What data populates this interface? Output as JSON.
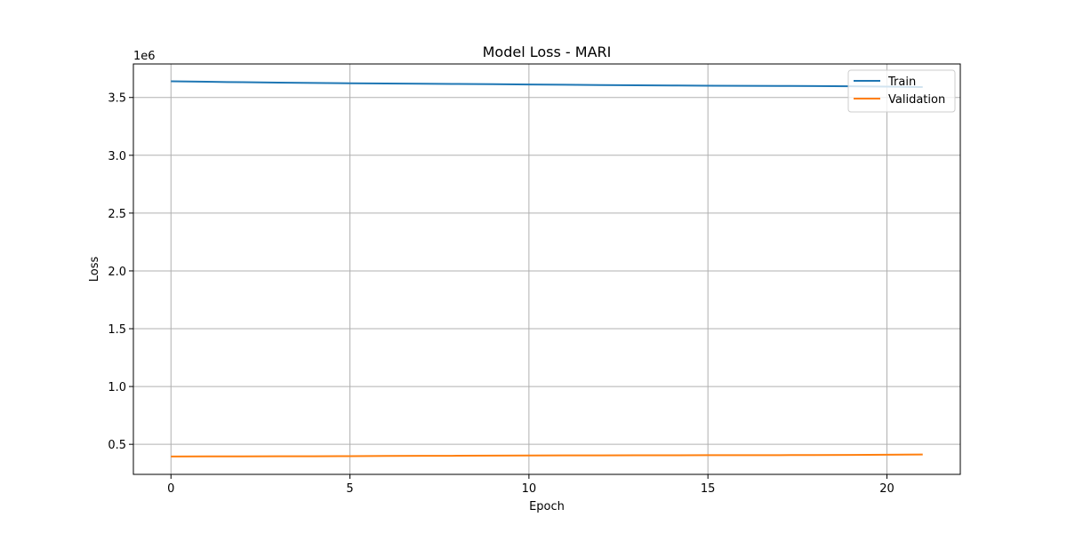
{
  "chart_data": {
    "type": "line",
    "title": "Model Loss - MARI",
    "xlabel": "Epoch",
    "ylabel": "Loss",
    "y_offset_label": "1e6",
    "y_scale": 1000000,
    "xlim": [
      -1.05,
      22.05
    ],
    "ylim": [
      240000,
      3790000
    ],
    "xticks": [
      0,
      5,
      10,
      15,
      20
    ],
    "yticks": [
      500000,
      1000000,
      1500000,
      2000000,
      2500000,
      3000000,
      3500000
    ],
    "ytick_labels": [
      "0.5",
      "1.0",
      "1.5",
      "2.0",
      "2.5",
      "3.0",
      "3.5"
    ],
    "grid": true,
    "legend_position": "top-right",
    "x": [
      0,
      1,
      2,
      3,
      4,
      5,
      6,
      7,
      8,
      9,
      10,
      11,
      12,
      13,
      14,
      15,
      16,
      17,
      18,
      19,
      20,
      21
    ],
    "series": [
      {
        "name": "Train",
        "color": "#1f77b4",
        "values": [
          3640000,
          3636000,
          3632000,
          3629000,
          3626000,
          3623000,
          3621000,
          3619000,
          3617000,
          3615000,
          3612000,
          3610000,
          3608000,
          3606000,
          3604000,
          3602000,
          3601000,
          3600000,
          3599000,
          3597000,
          3594000,
          3590000
        ]
      },
      {
        "name": "Validation",
        "color": "#ff7f0e",
        "values": [
          395000,
          395500,
          396000,
          396500,
          397000,
          398000,
          399000,
          400000,
          401000,
          402000,
          403000,
          404000,
          404500,
          405000,
          405500,
          406000,
          406000,
          406500,
          407000,
          408000,
          410000,
          412000
        ]
      }
    ]
  }
}
